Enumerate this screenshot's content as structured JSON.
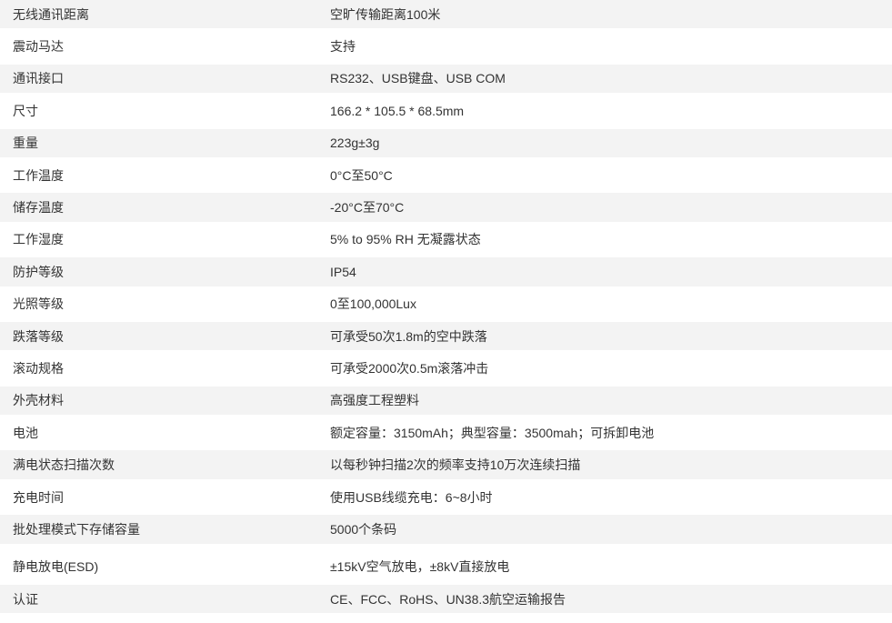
{
  "colors": {
    "background": "#ffffff",
    "row_stripe": "#f3f3f3",
    "text": "#333333"
  },
  "spec_table": {
    "rows": [
      {
        "label": "无线通讯距离",
        "value": "空旷传输距离100米"
      },
      {
        "label": "震动马达",
        "value": "支持"
      },
      {
        "label": "通讯接口",
        "value": "RS232、USB键盘、USB COM"
      },
      {
        "label": "尺寸",
        "value": "166.2 * 105.5 * 68.5mm"
      },
      {
        "label": "重量",
        "value": "223g±3g"
      },
      {
        "label": "工作温度",
        "value": "0°C至50°C"
      },
      {
        "label": "储存温度",
        "value": "-20°C至70°C"
      },
      {
        "label": "工作湿度",
        "value": "5% to 95% RH 无凝露状态"
      },
      {
        "label": "防护等级",
        "value": "IP54"
      },
      {
        "label": "光照等级",
        "value": "0至100,000Lux"
      },
      {
        "label": "跌落等级",
        "value": "可承受50次1.8m的空中跌落"
      },
      {
        "label": "滚动规格",
        "value": "可承受2000次0.5m滚落冲击"
      },
      {
        "label": "外壳材料",
        "value": "高强度工程塑料"
      },
      {
        "label": "电池",
        "value": "额定容量：3150mAh；典型容量：3500mah；可拆卸电池"
      },
      {
        "label": "满电状态扫描次数",
        "value": "以每秒钟扫描2次的频率支持10万次连续扫描"
      },
      {
        "label": "充电时间",
        "value": "使用USB线缆充电：6~8小时"
      },
      {
        "label": "批处理模式下存储容量",
        "value": "5000个条码"
      },
      {
        "label": "静电放电(ESD)",
        "value": "±15kV空气放电，±8kV直接放电",
        "gap_above": true
      },
      {
        "label": "认证",
        "value": "CE、FCC、RoHS、UN38.3航空运输报告"
      }
    ]
  }
}
